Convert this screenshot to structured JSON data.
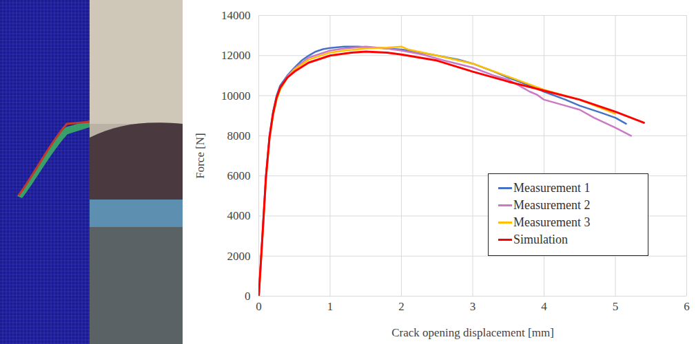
{
  "chart_data": {
    "type": "line",
    "xlabel": "Crack opening displacement [mm]",
    "ylabel": "Force [N]",
    "xlim": [
      0,
      6
    ],
    "xticks": [
      0,
      1,
      2,
      3,
      4,
      5,
      6
    ],
    "ylim": [
      0,
      14000
    ],
    "yticks": [
      0,
      2000,
      4000,
      6000,
      8000,
      10000,
      12000,
      14000
    ],
    "grid": true,
    "legend": "lower right",
    "series": [
      {
        "name": "Measurement 1",
        "color": "#4472c4",
        "x": [
          0,
          0.05,
          0.1,
          0.15,
          0.2,
          0.25,
          0.3,
          0.4,
          0.5,
          0.6,
          0.7,
          0.8,
          0.9,
          1.0,
          1.2,
          1.4,
          1.6,
          1.8,
          2.0,
          2.2,
          2.5,
          2.8,
          3.0,
          3.3,
          3.5,
          3.8,
          4.0,
          4.3,
          4.5,
          4.8,
          5.0,
          5.15
        ],
        "values": [
          0,
          3000,
          6000,
          8000,
          9200,
          10000,
          10500,
          11000,
          11400,
          11750,
          12000,
          12200,
          12320,
          12380,
          12450,
          12450,
          12400,
          12350,
          12300,
          12200,
          12000,
          11800,
          11600,
          11200,
          10900,
          10500,
          10200,
          9800,
          9500,
          9150,
          8900,
          8600
        ]
      },
      {
        "name": "Measurement 2",
        "color": "#cc79c4",
        "x": [
          0,
          0.05,
          0.1,
          0.15,
          0.2,
          0.25,
          0.3,
          0.4,
          0.5,
          0.7,
          1.0,
          1.2,
          1.5,
          1.8,
          2.0,
          2.3,
          2.6,
          3.0,
          3.3,
          3.5,
          3.8,
          3.9,
          4.0,
          4.3,
          4.5,
          4.7,
          5.0,
          5.22
        ],
        "values": [
          0,
          2900,
          5900,
          7900,
          9100,
          9900,
          10400,
          10950,
          11350,
          11900,
          12250,
          12350,
          12450,
          12350,
          12250,
          12050,
          11750,
          11400,
          11000,
          10800,
          10200,
          10050,
          9800,
          9500,
          9300,
          8900,
          8400,
          8000
        ]
      },
      {
        "name": "Measurement 3",
        "color": "#ffc000",
        "x": [
          0,
          0.05,
          0.1,
          0.15,
          0.2,
          0.25,
          0.3,
          0.4,
          0.5,
          0.7,
          1.0,
          1.2,
          1.5,
          1.8,
          2.0,
          2.1,
          2.5,
          3.0,
          3.5,
          4.0,
          4.5,
          5.0
        ],
        "values": [
          0,
          2800,
          5800,
          7800,
          9000,
          9800,
          10300,
          10900,
          11300,
          11800,
          12150,
          12250,
          12350,
          12400,
          12450,
          12300,
          12000,
          11600,
          10950,
          10300,
          9800,
          9100
        ]
      },
      {
        "name": "Simulation",
        "color": "#ff0000",
        "x": [
          0,
          0.05,
          0.1,
          0.15,
          0.2,
          0.25,
          0.3,
          0.4,
          0.5,
          0.7,
          1.0,
          1.3,
          1.5,
          1.8,
          2.0,
          2.5,
          3.0,
          3.5,
          4.0,
          4.5,
          5.0,
          5.4
        ],
        "values": [
          0,
          2900,
          5900,
          7900,
          9100,
          9900,
          10400,
          10900,
          11200,
          11650,
          12000,
          12150,
          12200,
          12150,
          12050,
          11750,
          11200,
          10700,
          10250,
          9800,
          9200,
          8650
        ]
      }
    ]
  }
}
